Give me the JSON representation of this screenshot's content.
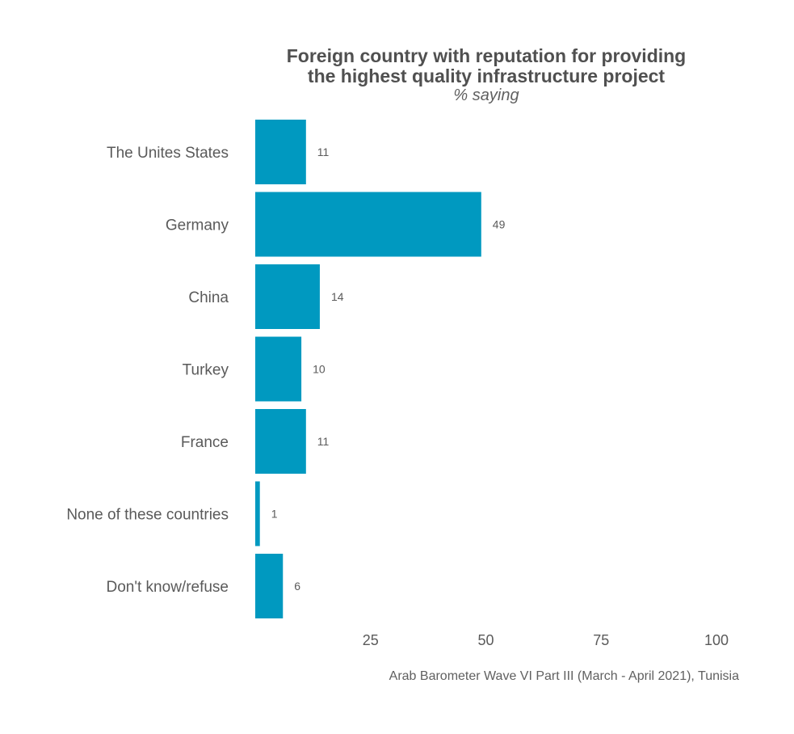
{
  "chart_data": {
    "type": "bar",
    "orientation": "horizontal",
    "title_line1": "Foreign country with reputation for providing",
    "title_line2": "the highest quality infrastructure project",
    "subtitle": "% saying",
    "caption": "Arab Barometer Wave VI Part III (March - April 2021), Tunisia",
    "categories": [
      "The Unites States",
      "Germany",
      "China",
      "Turkey",
      "France",
      "None of these countries",
      "Don't know/refuse"
    ],
    "values": [
      11,
      49,
      14,
      10,
      11,
      1,
      6
    ],
    "xlim": [
      0,
      100
    ],
    "xticks": [
      "25",
      "50",
      "75",
      "100"
    ],
    "grid": false,
    "bar_color": "#0099c0"
  }
}
